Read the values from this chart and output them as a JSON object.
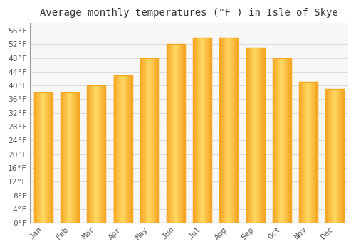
{
  "title": "Average monthly temperatures (°F ) in Isle of Skye",
  "months": [
    "Jan",
    "Feb",
    "Mar",
    "Apr",
    "May",
    "Jun",
    "Jul",
    "Aug",
    "Sep",
    "Oct",
    "Nov",
    "Dec"
  ],
  "values": [
    38,
    38,
    40,
    43,
    48,
    52,
    54,
    54,
    51,
    48,
    41,
    39
  ],
  "bar_color_center": "#FFD966",
  "bar_color_edge": "#F5A623",
  "ylim": [
    0,
    58
  ],
  "yticks": [
    0,
    4,
    8,
    12,
    16,
    20,
    24,
    28,
    32,
    36,
    40,
    44,
    48,
    52,
    56
  ],
  "background_color": "#ffffff",
  "plot_bg_color": "#f7f7f7",
  "grid_color": "#dddddd",
  "spine_color": "#999999",
  "title_fontsize": 10,
  "tick_fontsize": 8,
  "font_family": "monospace"
}
